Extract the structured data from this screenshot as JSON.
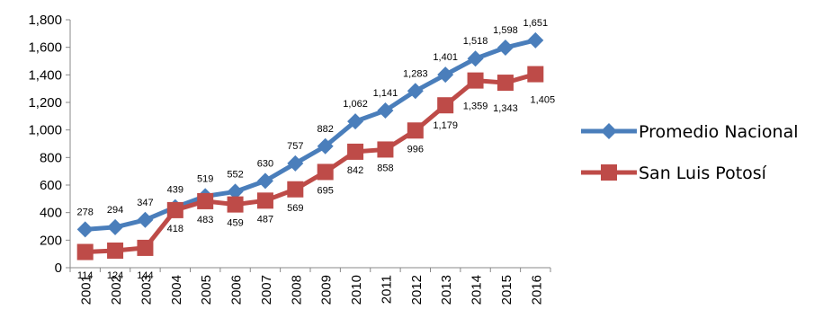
{
  "chart_data": {
    "type": "line",
    "x": [
      "2001",
      "2002",
      "2003",
      "2004",
      "2005",
      "2006",
      "2007",
      "2008",
      "2009",
      "2010",
      "2011",
      "2012",
      "2013",
      "2014",
      "2015",
      "2016"
    ],
    "series": [
      {
        "name": "Promedio Nacional",
        "color": "#4A7EBB",
        "marker": "diamond",
        "values": [
          278,
          294,
          347,
          439,
          519,
          552,
          630,
          757,
          882,
          1062,
          1141,
          1283,
          1401,
          1518,
          1598,
          1651
        ],
        "labels": [
          "278",
          "294",
          "347",
          "439",
          "519",
          "552",
          "630",
          "757",
          "882",
          "1,062",
          "1,141",
          "1,283",
          "1,401",
          "1,518",
          "1,598",
          "1,651"
        ]
      },
      {
        "name": "San Luis Potosí",
        "color": "#BE4B48",
        "marker": "square",
        "values": [
          114,
          124,
          144,
          418,
          483,
          459,
          487,
          569,
          695,
          842,
          858,
          996,
          1179,
          1359,
          1343,
          1405
        ],
        "labels": [
          "114",
          "124",
          "144",
          "418",
          "483",
          "459",
          "487",
          "569",
          "695",
          "842",
          "858",
          "996",
          "1,179",
          "1,359",
          "1,343",
          "1,405"
        ]
      }
    ],
    "ylim": [
      0,
      1800
    ],
    "yticks": [
      0,
      200,
      400,
      600,
      800,
      1000,
      1200,
      1400,
      1600,
      1800
    ],
    "ytick_labels": [
      "0",
      "200",
      "400",
      "600",
      "800",
      "1,000",
      "1,200",
      "1,400",
      "1,600",
      "1,800"
    ],
    "title": "",
    "xlabel": "",
    "ylabel": "",
    "grid": false,
    "legend": "right"
  }
}
